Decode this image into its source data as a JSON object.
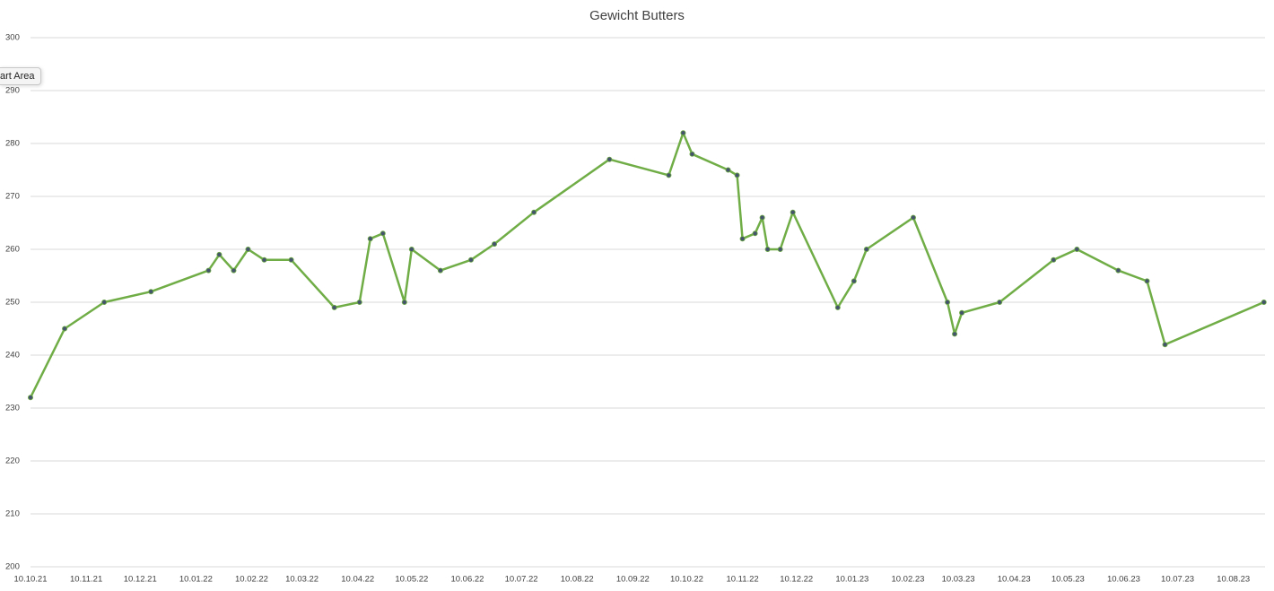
{
  "chart_data": {
    "type": "line",
    "title": "Gewicht Butters",
    "x": [
      "10.10.21",
      "29.10.21",
      "20.11.21",
      "16.12.21",
      "17.01.22",
      "23.01.22",
      "31.01.22",
      "08.02.22",
      "17.02.22",
      "04.03.22",
      "28.03.22",
      "11.04.22",
      "17.04.22",
      "24.04.22",
      "06.05.22",
      "10.05.22",
      "26.05.22",
      "12.06.22",
      "25.06.22",
      "17.07.22",
      "28.08.22",
      "30.09.22",
      "08.10.22",
      "13.10.22",
      "02.11.22",
      "07.11.22",
      "10.11.22",
      "17.11.22",
      "21.11.22",
      "24.11.22",
      "01.12.22",
      "08.12.22",
      "02.01.23",
      "11.01.23",
      "18.01.23",
      "13.02.23",
      "04.03.23",
      "08.03.23",
      "12.03.23",
      "02.04.23",
      "02.05.23",
      "15.05.23",
      "07.06.23",
      "23.06.23",
      "03.07.23",
      "27.08.23"
    ],
    "series": [
      {
        "name": "Gewicht",
        "color": "#70ad47",
        "marker_color": "#44546a",
        "values": [
          232,
          245,
          250,
          252,
          256,
          259,
          256,
          260,
          258,
          258,
          249,
          250,
          262,
          263,
          250,
          260,
          256,
          258,
          261,
          267,
          277,
          274,
          282,
          278,
          275,
          274,
          262,
          263,
          266,
          260,
          260,
          267,
          249,
          254,
          260,
          266,
          250,
          244,
          248,
          250,
          258,
          260,
          256,
          254,
          242,
          250
        ]
      }
    ],
    "xlim": [
      "10.10.21",
      "27.08.23"
    ],
    "xticks": [
      "10.10.21",
      "10.11.21",
      "10.12.21",
      "10.01.22",
      "10.02.22",
      "10.03.22",
      "10.04.22",
      "10.05.22",
      "10.06.22",
      "10.07.22",
      "10.08.22",
      "10.09.22",
      "10.10.22",
      "10.11.22",
      "10.12.22",
      "10.01.23",
      "10.02.23",
      "10.03.23",
      "10.04.23",
      "10.05.23",
      "10.06.23",
      "10.07.23",
      "10.08.23"
    ],
    "ylim": [
      200,
      300
    ],
    "yticks": [
      200,
      210,
      220,
      230,
      240,
      250,
      260,
      270,
      280,
      290,
      300
    ],
    "grid": true,
    "tooltip": "art Area"
  }
}
